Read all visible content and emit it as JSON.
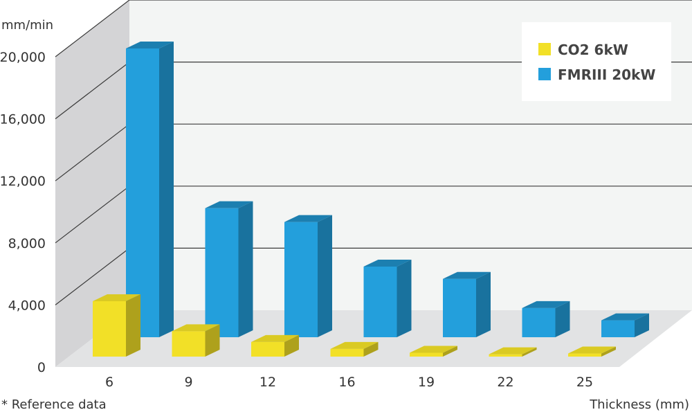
{
  "chart_data": {
    "type": "bar",
    "title": "",
    "ylabel": "mm/min",
    "xlabel": "Thickness (mm)",
    "categories": [
      "6",
      "9",
      "12",
      "16",
      "19",
      "22",
      "25"
    ],
    "yticks": [
      "0",
      "4,000",
      "8,000",
      "12,000",
      "16,000",
      "20,000"
    ],
    "ylim": [
      0,
      20000
    ],
    "grid": true,
    "legend_position": "top-right",
    "series": [
      {
        "name": "CO2 6kW",
        "color": "#f2e027",
        "values": [
          3600,
          1650,
          950,
          500,
          250,
          150,
          200
        ]
      },
      {
        "name": "FMRIII 20kW",
        "color": "#239fdc",
        "values": [
          18800,
          8400,
          7500,
          4600,
          3800,
          1900,
          1100
        ]
      }
    ]
  },
  "footnote": "* Reference data"
}
